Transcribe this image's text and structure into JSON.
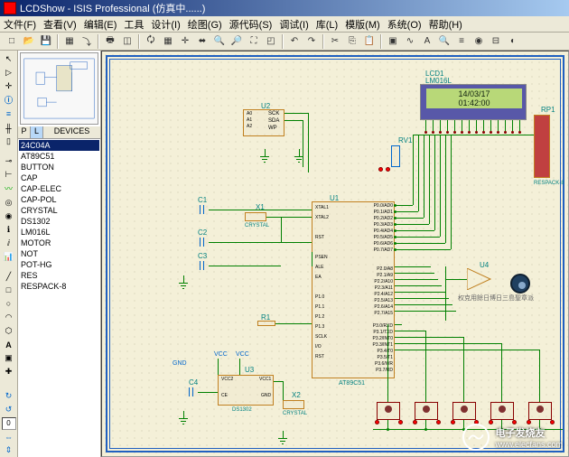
{
  "window": {
    "title": "LCDShow - ISIS Professional (仿真中......)"
  },
  "menu": {
    "file": "文件(F)",
    "view": "查看(V)",
    "edit": "编辑(E)",
    "tools": "工具",
    "design": "设计(I)",
    "plot": "绘图(G)",
    "source": "源代码(S)",
    "debug": "调试(I)",
    "lib": "库(L)",
    "template": "模版(M)",
    "system": "系统(O)",
    "help": "帮助(H)"
  },
  "side": {
    "header_p": "P",
    "header_l": "L",
    "header_title": "DEVICES",
    "devices": [
      "24C04A",
      "AT89C51",
      "BUTTON",
      "CAP",
      "CAP-ELEC",
      "CAP-POL",
      "CRYSTAL",
      "DS1302",
      "LM016L",
      "MOTOR",
      "NOT",
      "POT-HG",
      "RES",
      "RESPACK-8"
    ],
    "selected_index": 0
  },
  "schematic": {
    "lcd": {
      "ref": "LCD1",
      "part": "LM016L",
      "line1": "14/03/17",
      "line2": "01:42:00"
    },
    "u1": {
      "ref": "U1",
      "part": "AT89C51",
      "left_pins": [
        "XTAL1",
        "XTAL2",
        "",
        "RST",
        "",
        "PSEN",
        "ALE",
        "EA",
        "",
        "P1.0",
        "P1.1",
        "P1.2",
        "P1.3",
        "SCLK",
        "I/O",
        "RST"
      ],
      "right_pins": [
        "P0.0/AD0",
        "P0.1/AD1",
        "P0.2/AD2",
        "P0.3/AD3",
        "P0.4/AD4",
        "P0.5/AD5",
        "P0.6/AD6",
        "P0.7/AD7",
        "",
        "",
        "P2.0/A8",
        "P2.1/A9",
        "P2.2/A10",
        "P2.3/A11",
        "P2.4/A12",
        "P2.5/A13",
        "P2.6/A14",
        "P2.7/A15",
        "",
        "P3.0/RXD",
        "P3.1/TXD",
        "P3.2/INT0",
        "P3.3/INT1",
        "P3.4/T0",
        "P3.5/T1",
        "P3.6/WR",
        "P3.7/RD"
      ]
    },
    "u2": {
      "ref": "U2",
      "pins": [
        "SCK",
        "SDA",
        "WP"
      ]
    },
    "u3": {
      "ref": "U3",
      "part": "DS1302",
      "pins": [
        "VCC2",
        "VCC",
        "CE",
        "VCC1",
        "GND"
      ]
    },
    "u4": {
      "ref": "U4"
    },
    "rv1": {
      "ref": "RV1"
    },
    "rp1": {
      "ref": "RP1",
      "part": "RESPACK-8"
    },
    "c1": {
      "ref": "C1"
    },
    "c2": {
      "ref": "C2"
    },
    "c3": {
      "ref": "C3"
    },
    "c4": {
      "ref": "C4"
    },
    "r1": {
      "ref": "R1"
    },
    "x1": {
      "ref": "X1",
      "part": "CRYSTAL"
    },
    "x2": {
      "ref": "X2",
      "part": "CRYSTAL"
    },
    "note": "权克用餘日博日三島聖章派"
  },
  "watermark": {
    "text1": "电子发烧友",
    "text2": "www.elecfans.com"
  },
  "colors": {
    "titlebar_start": "#0a246a",
    "titlebar_end": "#a6caf0",
    "canvas_bg": "#f4f0d8",
    "wire": "#008000",
    "component_border": "#c08020",
    "ref_text": "#008080",
    "sheet_border": "#2060c0",
    "lcd_bg": "#5858a8",
    "lcd_screen": "#b8d878"
  }
}
